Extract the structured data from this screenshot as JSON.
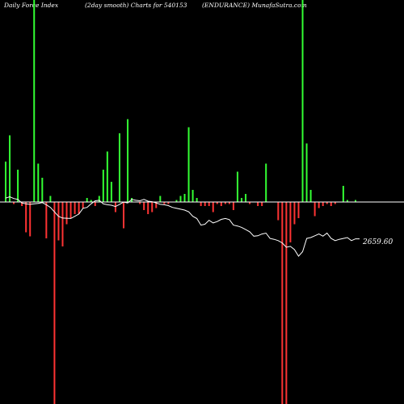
{
  "header": {
    "left": "Daily Force  Index",
    "middle": "(2day smooth) Charts for 540153",
    "right": "(ENDURANCE) MunafaSutra.com"
  },
  "colors": {
    "background": "#000000",
    "positive": "#33ff33",
    "negative": "#ff3333",
    "zero_line": "#ffffff",
    "smooth_line": "#ffffff"
  },
  "chart_data": {
    "type": "bar",
    "description_units": "force index bars; positive up, negative down; magnitudes relative to the zero line",
    "values": [
      100,
      165,
      -5,
      80,
      -10,
      -75,
      -85,
      500,
      95,
      60,
      -90,
      15,
      -500,
      -95,
      -110,
      -55,
      -40,
      -30,
      -30,
      -15,
      10,
      5,
      -10,
      15,
      80,
      125,
      50,
      -25,
      170,
      -65,
      205,
      10,
      0,
      -5,
      -20,
      -30,
      -25,
      -15,
      15,
      -5,
      -5,
      0,
      5,
      15,
      20,
      185,
      30,
      10,
      -10,
      -10,
      -10,
      -25,
      -5,
      -10,
      -5,
      -5,
      -20,
      75,
      10,
      20,
      -5,
      0,
      -10,
      -10,
      95,
      0,
      0,
      -45,
      -500,
      -500,
      -100,
      -55,
      -40,
      500,
      145,
      30,
      -35,
      -15,
      -10,
      -5,
      -10,
      -5,
      0,
      40,
      5,
      0,
      5,
      0
    ],
    "smooth_line": [
      2610,
      2640,
      2600,
      2580,
      2500,
      2480,
      2470,
      2480,
      2490,
      2510,
      2460,
      2400,
      2300,
      2200,
      2160,
      2155,
      2150,
      2200,
      2250,
      2380,
      2400,
      2480,
      2550,
      2560,
      2480,
      2460,
      2450,
      2420,
      2470,
      2520,
      2500,
      2580,
      2560,
      2550,
      2580,
      2540,
      2530,
      2500,
      2470,
      2460,
      2440,
      2400,
      2380,
      2360,
      2340,
      2300,
      2200,
      2150,
      2000,
      2020,
      2110,
      2050,
      2080,
      2130,
      2150,
      2125,
      2000,
      1980,
      1950,
      1900,
      1850,
      1750,
      1760,
      1800,
      1820,
      1700,
      1680,
      1650,
      1600,
      1500,
      1520,
      1450,
      1300,
      1400,
      1700,
      1720,
      1760,
      1800,
      1750,
      1820,
      1700,
      1650,
      1680,
      1700,
      1720,
      1650,
      1690,
      1690
    ],
    "last_value_label": "2659.60",
    "grid": false,
    "legend": "none"
  }
}
